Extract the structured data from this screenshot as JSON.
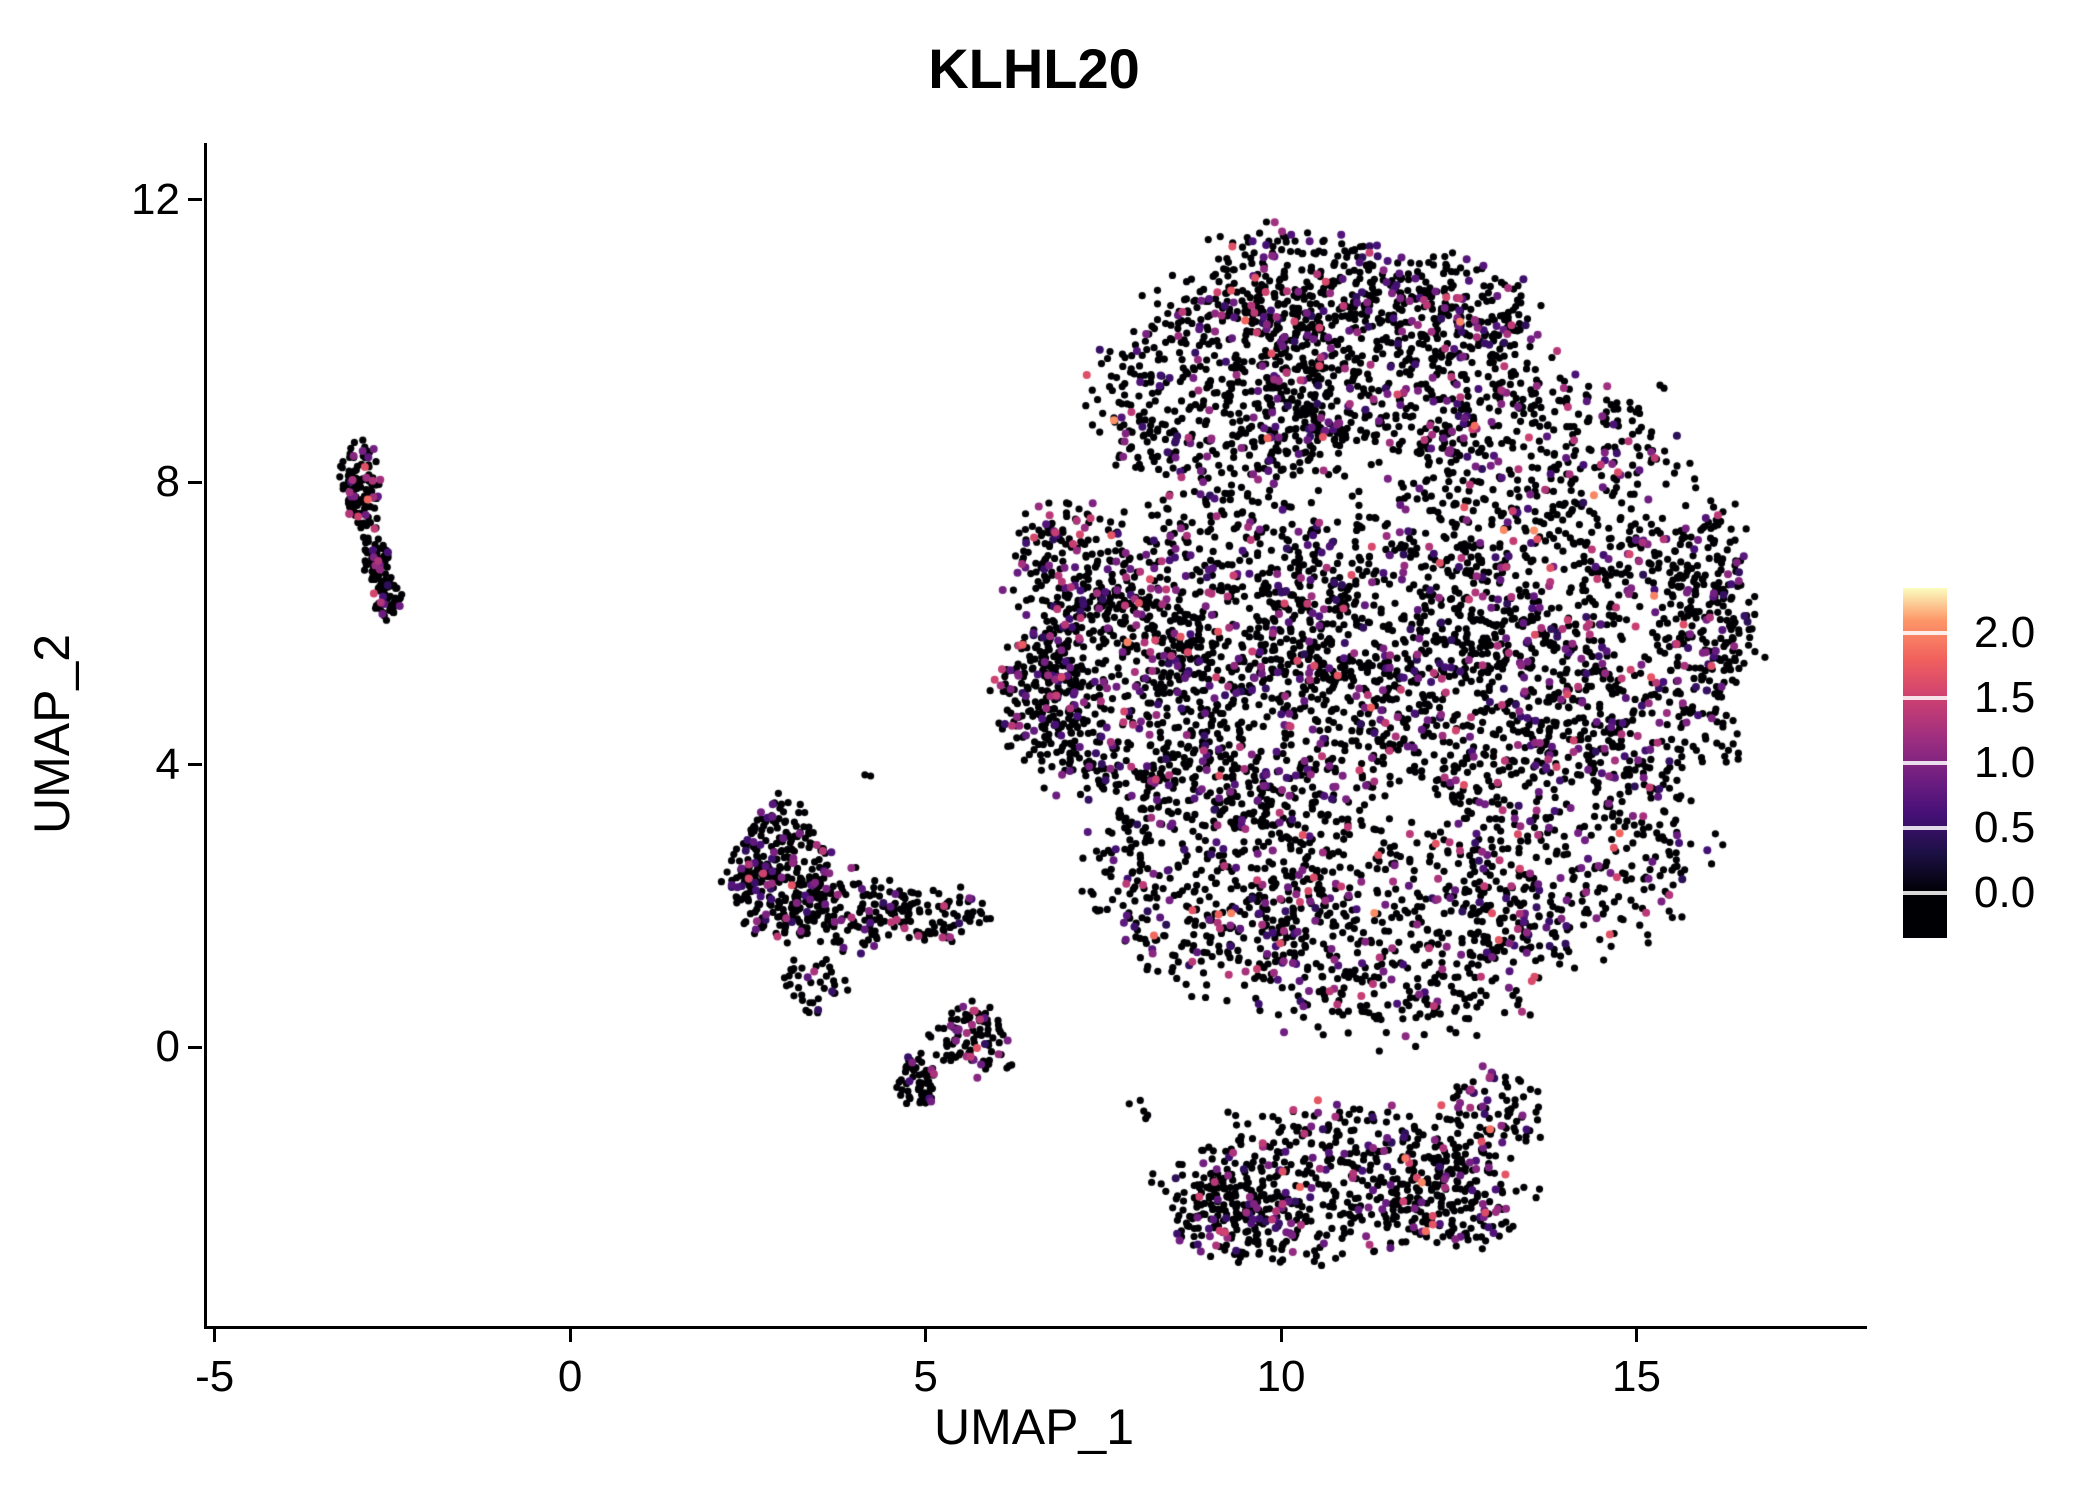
{
  "figure": {
    "title": "KLHL20",
    "xlabel": "UMAP_1",
    "ylabel": "UMAP_2"
  },
  "chart_data": {
    "type": "scatter",
    "title": "KLHL20",
    "xlabel": "UMAP_1",
    "ylabel": "UMAP_2",
    "xlim": [
      -5.15,
      18.2
    ],
    "ylim": [
      -3.95,
      12.8
    ],
    "xticks": [
      -5,
      0,
      5,
      10,
      15
    ],
    "yticks": [
      0,
      4,
      8,
      12
    ],
    "grid": false,
    "legend_position": "right",
    "point_radius": 3.6,
    "seed": 42,
    "expr": {
      "zero_fraction": 0.82
    },
    "colorbar": {
      "label_values": [
        "2.0",
        "1.5",
        "1.0",
        "0.5",
        "0.0"
      ],
      "tick_values": [
        2.0,
        1.5,
        1.0,
        0.5,
        0.0
      ],
      "domain": [
        -0.35,
        2.35
      ]
    },
    "colormap": [
      {
        "v": 0.0,
        "c": "#000004"
      },
      {
        "v": 0.3,
        "c": "#1c1044"
      },
      {
        "v": 0.6,
        "c": "#451077"
      },
      {
        "v": 0.9,
        "c": "#721f81"
      },
      {
        "v": 1.2,
        "c": "#9f2f7f"
      },
      {
        "v": 1.5,
        "c": "#cd4071"
      },
      {
        "v": 1.8,
        "c": "#f1605d"
      },
      {
        "v": 2.1,
        "c": "#fd9668"
      },
      {
        "v": 2.4,
        "c": "#fcfdbf"
      }
    ],
    "clusters": [
      {
        "cx": 9.2,
        "cy": 9.3,
        "rx": 2.0,
        "ry": 1.6,
        "n": 520
      },
      {
        "cx": 11.3,
        "cy": 9.6,
        "rx": 2.2,
        "ry": 1.5,
        "n": 500
      },
      {
        "cx": 13.6,
        "cy": 8.0,
        "rx": 2.0,
        "ry": 1.8,
        "n": 450
      },
      {
        "cx": 15.0,
        "cy": 5.5,
        "rx": 1.6,
        "ry": 2.0,
        "n": 420
      },
      {
        "cx": 14.0,
        "cy": 3.0,
        "rx": 2.0,
        "ry": 1.8,
        "n": 420
      },
      {
        "cx": 11.5,
        "cy": 1.5,
        "rx": 2.4,
        "ry": 1.5,
        "n": 500
      },
      {
        "cx": 9.0,
        "cy": 2.5,
        "rx": 1.8,
        "ry": 1.8,
        "n": 450
      },
      {
        "cx": 7.8,
        "cy": 5.0,
        "rx": 1.6,
        "ry": 1.8,
        "n": 500
      },
      {
        "cx": 9.3,
        "cy": 6.5,
        "rx": 1.8,
        "ry": 1.8,
        "n": 450
      },
      {
        "cx": 11.5,
        "cy": 6.0,
        "rx": 2.0,
        "ry": 1.8,
        "n": 420
      },
      {
        "cx": 12.8,
        "cy": 5.0,
        "rx": 1.8,
        "ry": 1.6,
        "n": 350
      },
      {
        "cx": 10.3,
        "cy": 4.3,
        "rx": 1.6,
        "ry": 1.4,
        "n": 300
      },
      {
        "cx": 10.2,
        "cy": 10.8,
        "rx": 1.5,
        "ry": 0.9,
        "n": 220
      },
      {
        "cx": 12.3,
        "cy": 10.4,
        "rx": 1.3,
        "ry": 0.9,
        "n": 180
      },
      {
        "cx": 7.0,
        "cy": 6.8,
        "rx": 0.9,
        "ry": 1.0,
        "n": 200
      },
      {
        "cx": 6.6,
        "cy": 5.0,
        "rx": 0.7,
        "ry": 1.0,
        "n": 180
      },
      {
        "cx": 16.0,
        "cy": 6.5,
        "rx": 0.7,
        "ry": 1.5,
        "n": 150
      },
      {
        "cx": 10.6,
        "cy": -1.9,
        "rx": 2.4,
        "ry": 1.1,
        "n": 480
      },
      {
        "cx": 9.3,
        "cy": -2.4,
        "rx": 1.0,
        "ry": 0.7,
        "n": 150
      },
      {
        "cx": 12.4,
        "cy": -2.1,
        "rx": 1.1,
        "ry": 0.8,
        "n": 150
      },
      {
        "cx": 12.9,
        "cy": -0.9,
        "rx": 0.8,
        "ry": 0.6,
        "n": 80
      },
      {
        "cx": 2.9,
        "cy": 2.5,
        "rx": 0.75,
        "ry": 1.0,
        "n": 300
      },
      {
        "cx": 3.9,
        "cy": 1.9,
        "rx": 0.9,
        "ry": 0.6,
        "n": 130
      },
      {
        "cx": 5.1,
        "cy": 1.9,
        "rx": 0.8,
        "ry": 0.4,
        "n": 80
      },
      {
        "cx": 5.6,
        "cy": 0.1,
        "rx": 0.55,
        "ry": 0.5,
        "n": 90
      },
      {
        "cx": 4.85,
        "cy": -0.5,
        "rx": 0.3,
        "ry": 0.4,
        "n": 60
      },
      {
        "cx": 3.4,
        "cy": 0.9,
        "rx": 0.45,
        "ry": 0.45,
        "n": 40
      },
      {
        "cx": -2.98,
        "cy": 8.0,
        "rx": 0.3,
        "ry": 0.6,
        "n": 110
      },
      {
        "cx": -2.78,
        "cy": 7.0,
        "rx": 0.22,
        "ry": 0.45,
        "n": 60
      },
      {
        "cx": -2.62,
        "cy": 6.35,
        "rx": 0.2,
        "ry": 0.3,
        "n": 50
      },
      {
        "cx": 4.15,
        "cy": 3.85,
        "rx": 0.06,
        "ry": 0.06,
        "n": 2
      },
      {
        "cx": 15.35,
        "cy": 9.35,
        "rx": 0.08,
        "ry": 0.08,
        "n": 2
      },
      {
        "cx": 6.15,
        "cy": -0.35,
        "rx": 0.15,
        "ry": 0.1,
        "n": 3
      },
      {
        "cx": 13.3,
        "cy": -1.05,
        "rx": 0.3,
        "ry": 0.15,
        "n": 6
      },
      {
        "cx": 7.9,
        "cy": -0.9,
        "rx": 0.25,
        "ry": 0.2,
        "n": 5
      },
      {
        "cx": 16.3,
        "cy": 4.2,
        "rx": 0.15,
        "ry": 0.4,
        "n": 8
      }
    ]
  }
}
